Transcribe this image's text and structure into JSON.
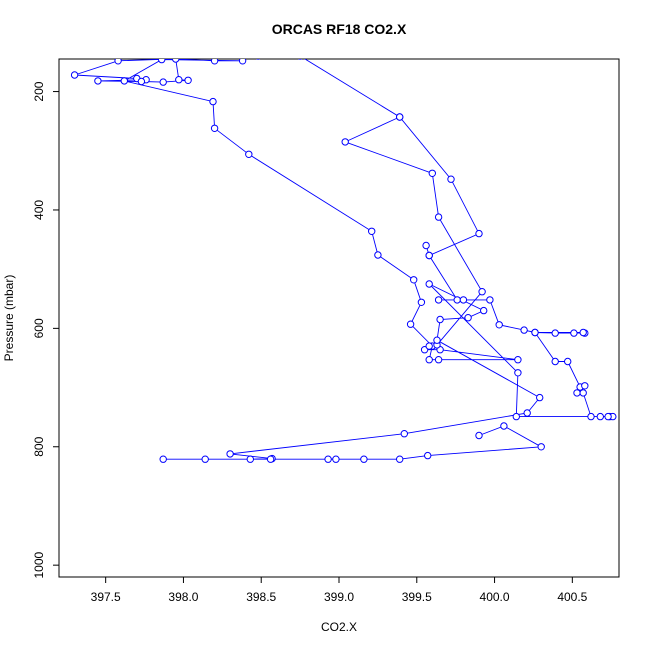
{
  "chart_data": {
    "type": "line",
    "title": "ORCAS RF18 CO2.X",
    "xlabel": "CO2.X",
    "ylabel": "Pressure (mbar)",
    "xlim": [
      397.2,
      400.8
    ],
    "ylim": [
      1020,
      145
    ],
    "y_reversed": true,
    "x_ticks": [
      397.5,
      398.0,
      398.5,
      399.0,
      399.5,
      400.0,
      400.5
    ],
    "x_tick_labels": [
      "397.5",
      "398.0",
      "398.5",
      "399.0",
      "399.5",
      "400.0",
      "400.5"
    ],
    "y_ticks": [
      200,
      400,
      600,
      800,
      1000
    ],
    "y_tick_labels": [
      "200",
      "400",
      "600",
      "800",
      "1000"
    ],
    "grid": false,
    "legend": "none",
    "line_color": "#0000ff",
    "points": [
      [
        398.48,
        140
      ],
      [
        397.58,
        148
      ],
      [
        397.3,
        172
      ],
      [
        397.7,
        178
      ],
      [
        397.76,
        180
      ],
      [
        397.45,
        182
      ],
      [
        397.73,
        183
      ],
      [
        397.87,
        184
      ],
      [
        398.03,
        181
      ],
      [
        397.97,
        180
      ],
      [
        397.95,
        145
      ],
      [
        398.2,
        148
      ],
      [
        398.38,
        148
      ],
      [
        397.86,
        146
      ],
      [
        397.62,
        182
      ],
      [
        398.19,
        217
      ],
      [
        398.2,
        262
      ],
      [
        398.42,
        306
      ],
      [
        399.21,
        436
      ],
      [
        399.25,
        476
      ],
      [
        399.48,
        518
      ],
      [
        399.53,
        556
      ],
      [
        399.46,
        593
      ],
      [
        399.6,
        630
      ],
      [
        399.58,
        653
      ],
      [
        399.64,
        653
      ],
      [
        400.15,
        653
      ],
      [
        399.65,
        636
      ],
      [
        399.55,
        636
      ],
      [
        399.58,
        630
      ],
      [
        399.63,
        628
      ],
      [
        399.92,
        538
      ],
      [
        399.64,
        412
      ],
      [
        399.6,
        338
      ],
      [
        399.04,
        285
      ],
      [
        399.39,
        243
      ],
      [
        398.75,
        140
      ],
      [
        399.39,
        243
      ],
      [
        399.72,
        348
      ],
      [
        399.9,
        440
      ],
      [
        399.58,
        477
      ],
      [
        399.56,
        460
      ],
      [
        399.58,
        477
      ],
      [
        399.76,
        552
      ],
      [
        399.64,
        552
      ],
      [
        399.8,
        552
      ],
      [
        399.97,
        552
      ],
      [
        400.03,
        594
      ],
      [
        400.19,
        603
      ],
      [
        400.26,
        607
      ],
      [
        400.39,
        608
      ],
      [
        400.51,
        608
      ],
      [
        400.58,
        608
      ],
      [
        400.57,
        607
      ],
      [
        400.26,
        607
      ],
      [
        400.39,
        656
      ],
      [
        400.47,
        656
      ],
      [
        400.55,
        699
      ],
      [
        400.58,
        697
      ],
      [
        400.53,
        709
      ],
      [
        400.57,
        709
      ],
      [
        400.62,
        749
      ],
      [
        400.68,
        749
      ],
      [
        400.74,
        749
      ],
      [
        400.76,
        749
      ],
      [
        400.73,
        749
      ],
      [
        400.14,
        749
      ],
      [
        400.15,
        675
      ],
      [
        399.58,
        525
      ],
      [
        399.93,
        570
      ],
      [
        399.83,
        582
      ],
      [
        399.65,
        585
      ],
      [
        399.63,
        620
      ],
      [
        400.29,
        717
      ],
      [
        400.21,
        743
      ],
      [
        399.42,
        778
      ],
      [
        398.3,
        812
      ],
      [
        398.57,
        820
      ],
      [
        398.43,
        821
      ],
      [
        398.56,
        821
      ],
      [
        398.14,
        821
      ],
      [
        397.87,
        821
      ],
      [
        398.93,
        821
      ],
      [
        398.98,
        821
      ],
      [
        399.16,
        821
      ],
      [
        399.39,
        821
      ],
      [
        399.57,
        815
      ],
      [
        400.3,
        800
      ],
      [
        400.06,
        765
      ],
      [
        399.9,
        781
      ]
    ]
  }
}
